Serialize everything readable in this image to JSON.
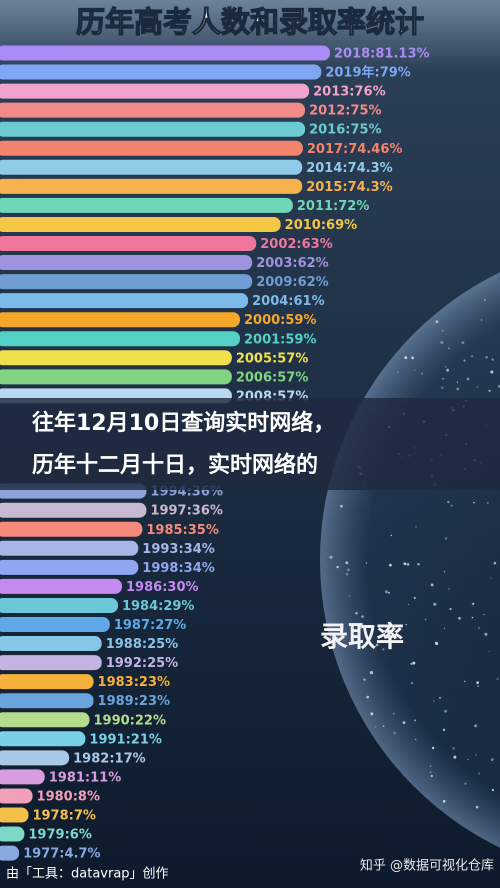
{
  "chart_data": {
    "type": "bar",
    "orientation": "horizontal",
    "title": "历年高考人数和录取率统计",
    "categories": [
      "2018:81.13%",
      "2019年:79%",
      "2013:76%",
      "2012:75%",
      "2016:75%",
      "2017:74.46%",
      "2014:74.3%",
      "2015:74.3%",
      "2011:72%",
      "2010:69%",
      "2002:63%",
      "2003:62%",
      "2009:62%",
      "2004:61%",
      "2000:59%",
      "2001:59%",
      "2005:57%",
      "2006:57%",
      "2008:57%",
      "1994:36%",
      "1997:36%",
      "1985:35%",
      "1993:34%",
      "1998:34%",
      "1986:30%",
      "1984:29%",
      "1987:27%",
      "1988:25%",
      "1992:25%",
      "1983:23%",
      "1989:23%",
      "1990:22%",
      "1991:21%",
      "1982:17%",
      "1981:11%",
      "1980:8%",
      "1978:7%",
      "1979:6%",
      "1977:4.7%"
    ],
    "values": [
      81.13,
      79,
      76,
      75,
      75,
      74.46,
      74.3,
      74.3,
      72,
      69,
      63,
      62,
      62,
      61,
      59,
      59,
      57,
      57,
      57,
      36,
      36,
      35,
      34,
      34,
      30,
      29,
      27,
      25,
      25,
      23,
      23,
      22,
      21,
      17,
      11,
      8,
      7,
      6,
      4.7
    ],
    "colors": [
      "#a98cf5",
      "#7ea6f2",
      "#f2a3cc",
      "#f28a8a",
      "#6ccbd2",
      "#f4846c",
      "#8fcbe6",
      "#f6b24c",
      "#6fd6b6",
      "#f4c744",
      "#f0769c",
      "#9e93dc",
      "#6f9dd4",
      "#7cbbe9",
      "#f5a72a",
      "#52d1c4",
      "#f0e04e",
      "#82d482",
      "#b9d9ef",
      "#8ea1d8",
      "#c9b9d0",
      "#f58a7a",
      "#a8b6e6",
      "#8fa6f0",
      "#c48af0",
      "#6cc8d8",
      "#5ea8e8",
      "#86c6e8",
      "#c4b4e4",
      "#f6b23a",
      "#6aa4dc",
      "#b4dc8e",
      "#7ad0e4",
      "#a8c8e8",
      "#d89ce0",
      "#f0a0b8",
      "#f5c04a",
      "#7ed8c8",
      "#8aa8e0"
    ]
  },
  "banner": [
    "往年12月10日查询实时网络，",
    "历年十二月十日，实时网络的"
  ],
  "watermark": "录取率",
  "credit": "由「工具：datavrap」创作",
  "source": "知乎 @数据可视化仓库"
}
